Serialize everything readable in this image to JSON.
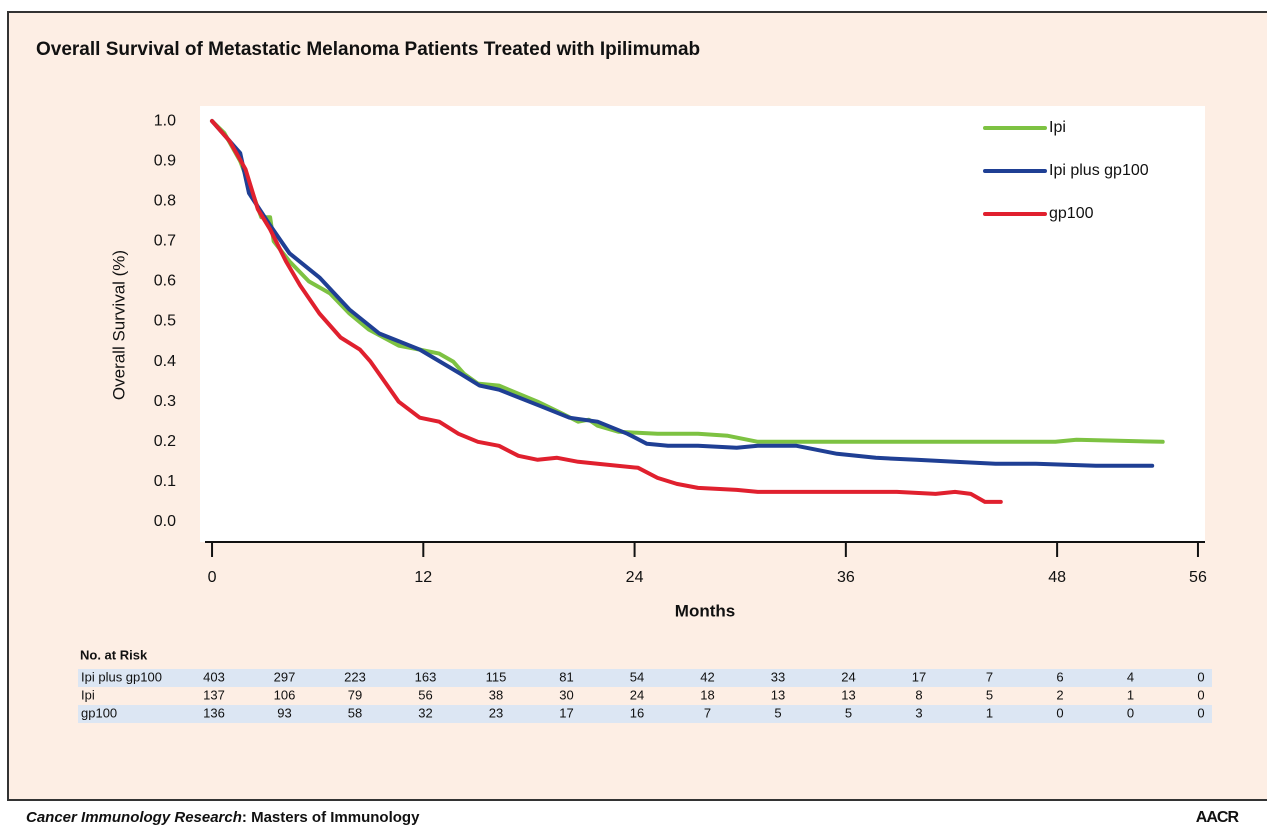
{
  "chart_data": {
    "type": "line",
    "title": "Overall Survival of Metastatic Melanoma Patients Treated with Ipilimumab",
    "x_label": "Months",
    "y_label": "Overall Survival (%)",
    "xlim": [
      -0.4,
      56.4
    ],
    "xticks": [
      0,
      12,
      24,
      36,
      48,
      56
    ],
    "ylim": [
      -0.05,
      1.05
    ],
    "yticks": [
      {
        "value": 0,
        "label": "0.0"
      },
      0.1,
      0.2,
      0.3,
      0.4,
      0.5,
      0.6,
      0.7,
      0.8,
      0.9,
      {
        "value": 1,
        "label": "1.0"
      }
    ],
    "legend": "upper right",
    "series": [
      {
        "name": "Ipi",
        "color": "#7dc242",
        "x": [
          0,
          0.7,
          1.6,
          2.3,
          2.8,
          3.3,
          3.5,
          4.4,
          5.5,
          6.7,
          7.8,
          8.9,
          10.6,
          11.8,
          12.9,
          13.7,
          14.3,
          15.1,
          16.3,
          17.4,
          18.5,
          19.9,
          20.8,
          21.4,
          21.9,
          23.1,
          25.3,
          27.6,
          29.3,
          31.0,
          33.2,
          38.9,
          44.5,
          47.9,
          49.1,
          54.0
        ],
        "values": [
          1.0,
          0.97,
          0.9,
          0.82,
          0.76,
          0.76,
          0.7,
          0.65,
          0.6,
          0.57,
          0.52,
          0.48,
          0.44,
          0.43,
          0.42,
          0.4,
          0.37,
          0.345,
          0.34,
          0.32,
          0.3,
          0.27,
          0.25,
          0.255,
          0.24,
          0.225,
          0.22,
          0.22,
          0.215,
          0.2,
          0.2,
          0.2,
          0.2,
          0.2,
          0.205,
          0.2
        ]
      },
      {
        "name": "Ipi plus gp100",
        "color": "#1f3f94",
        "x": [
          0,
          1.6,
          2.1,
          3.3,
          4.4,
          6.1,
          7.8,
          9.5,
          11.8,
          14.1,
          15.2,
          16.3,
          18.6,
          20.3,
          21.9,
          23.6,
          24.7,
          25.9,
          27.6,
          29.8,
          31.0,
          33.2,
          35.5,
          37.7,
          40.0,
          42.2,
          44.5,
          46.8,
          50.2,
          53.4
        ],
        "values": [
          1.0,
          0.92,
          0.82,
          0.74,
          0.67,
          0.61,
          0.53,
          0.47,
          0.43,
          0.37,
          0.34,
          0.33,
          0.29,
          0.26,
          0.25,
          0.22,
          0.195,
          0.19,
          0.19,
          0.185,
          0.19,
          0.19,
          0.17,
          0.16,
          0.155,
          0.15,
          0.145,
          0.145,
          0.14,
          0.14
        ]
      },
      {
        "name": "gp100",
        "color": "#e0202e",
        "x": [
          0,
          1.0,
          1.9,
          2.6,
          3.3,
          4.2,
          5.0,
          6.1,
          7.3,
          8.4,
          9.0,
          9.8,
          10.6,
          11.8,
          12.9,
          14.0,
          15.1,
          16.3,
          17.4,
          18.5,
          19.6,
          20.8,
          21.9,
          24.2,
          25.3,
          26.4,
          27.6,
          29.8,
          31.0,
          33.2,
          36.6,
          38.9,
          41.1,
          42.2,
          43.1,
          43.9,
          44.8
        ],
        "values": [
          1.0,
          0.95,
          0.88,
          0.78,
          0.73,
          0.65,
          0.59,
          0.52,
          0.46,
          0.43,
          0.4,
          0.35,
          0.3,
          0.26,
          0.25,
          0.22,
          0.2,
          0.19,
          0.165,
          0.155,
          0.16,
          0.15,
          0.145,
          0.135,
          0.11,
          0.095,
          0.085,
          0.08,
          0.075,
          0.075,
          0.075,
          0.075,
          0.07,
          0.075,
          0.07,
          0.05,
          0.05
        ]
      }
    ],
    "risk_table": {
      "title": "No. at Risk",
      "rows": [
        {
          "name": "Ipi plus gp100",
          "values": [
            403,
            297,
            223,
            163,
            115,
            81,
            54,
            42,
            33,
            24,
            17,
            7,
            6,
            4,
            0
          ]
        },
        {
          "name": "Ipi",
          "values": [
            137,
            106,
            79,
            56,
            38,
            30,
            24,
            18,
            13,
            13,
            8,
            5,
            2,
            1,
            0
          ]
        },
        {
          "name": "gp100",
          "values": [
            136,
            93,
            58,
            32,
            23,
            17,
            16,
            7,
            5,
            5,
            3,
            1,
            0,
            0,
            0
          ]
        }
      ]
    }
  },
  "footer": {
    "journal": "Cancer Immunology Research",
    "subtitle": ": Masters of Immunology",
    "logo": "AACR"
  }
}
